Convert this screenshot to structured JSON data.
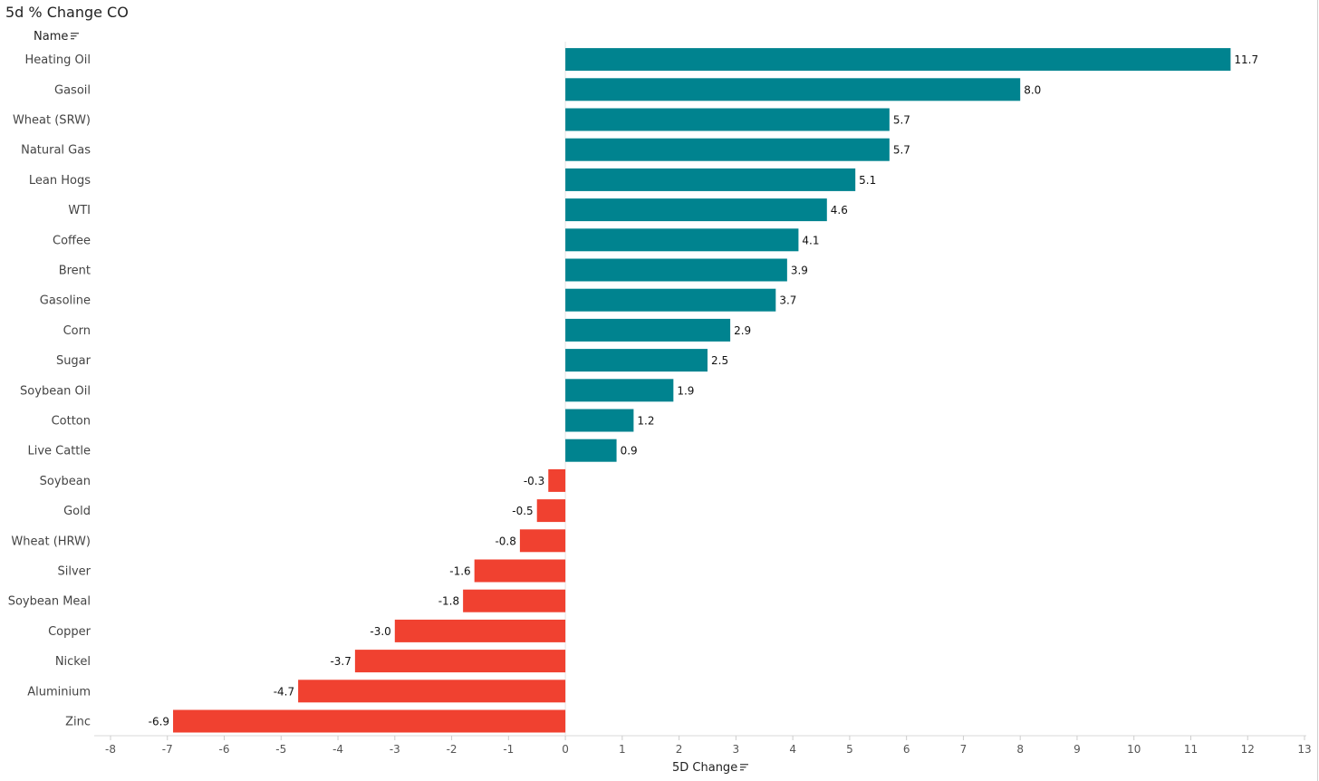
{
  "title": "5d % Change CO",
  "name_header": "Name",
  "axis_title": "5D Change",
  "colors": {
    "positive": "#00838f",
    "negative": "#f04130"
  },
  "chart_data": {
    "type": "bar",
    "orientation": "horizontal",
    "title": "5d % Change CO",
    "ylabel": "Name",
    "xlabel": "5D Change",
    "xlim": [
      -8,
      13
    ],
    "xticks": [
      -8,
      -7,
      -6,
      -5,
      -4,
      -3,
      -2,
      -1,
      0,
      1,
      2,
      3,
      4,
      5,
      6,
      7,
      8,
      9,
      10,
      11,
      12,
      13
    ],
    "categories": [
      "Heating Oil",
      "Gasoil",
      "Wheat (SRW)",
      "Natural Gas",
      "Lean Hogs",
      "WTI",
      "Coffee",
      "Brent",
      "Gasoline",
      "Corn",
      "Sugar",
      "Soybean Oil",
      "Cotton",
      "Live Cattle",
      "Soybean",
      "Gold",
      "Wheat (HRW)",
      "Silver",
      "Soybean Meal",
      "Copper",
      "Nickel",
      "Aluminium",
      "Zinc"
    ],
    "values": [
      11.7,
      8.0,
      5.7,
      5.7,
      5.1,
      4.6,
      4.1,
      3.9,
      3.7,
      2.9,
      2.5,
      1.9,
      1.2,
      0.9,
      -0.3,
      -0.5,
      -0.8,
      -1.6,
      -1.8,
      -3.0,
      -3.7,
      -4.7,
      -6.9
    ],
    "labels": [
      "11.7",
      "8.0",
      "5.7",
      "5.7",
      "5.1",
      "4.6",
      "4.1",
      "3.9",
      "3.7",
      "2.9",
      "2.5",
      "1.9",
      "1.2",
      "0.9",
      "-0.3",
      "-0.5",
      "-0.8",
      "-1.6",
      "-1.8",
      "-3.0",
      "-3.7",
      "-4.7",
      "-6.9"
    ]
  }
}
